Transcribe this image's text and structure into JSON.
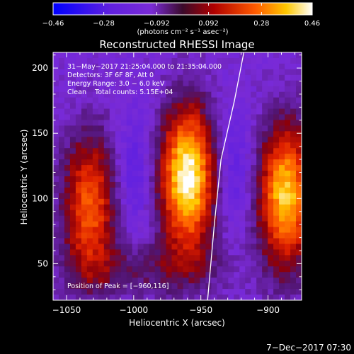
{
  "chart_data": {
    "type": "heatmap",
    "title": "Reconstructed RHESSI Image",
    "xlabel": "Heliocentric X (arcsec)",
    "ylabel": "Heliocentric Y (arcsec)",
    "xlim": [
      -1060,
      -875
    ],
    "ylim": [
      22,
      212
    ],
    "x_ticks": [
      -1050,
      -1000,
      -950,
      -900
    ],
    "x_tick_labels": [
      "−1050",
      "−1000",
      "−950",
      "−900"
    ],
    "y_ticks": [
      50,
      100,
      150,
      200
    ],
    "y_tick_labels": [
      "50",
      "100",
      "150",
      "200"
    ],
    "colorbar": {
      "min": -0.46,
      "max": 0.46,
      "ticks": [
        -0.46,
        -0.28,
        -0.092,
        0.092,
        0.28,
        0.46
      ],
      "tick_labels": [
        "−0.46",
        "−0.28",
        "−0.092",
        "0.092",
        "0.28",
        "0.46"
      ],
      "units": "(photons cm⁻² s⁻¹ asec⁻²)",
      "colors": [
        "#0000ff",
        "#7a2bd6",
        "#b00000",
        "#ff5a00",
        "#ffc800",
        "#ffffff"
      ]
    },
    "annotations": [
      "31−May−2017 21:25:04.000 to 21:35:04.000",
      "Detectors: 3F 6F 8F, Att 0",
      "Energy Range: 3.0 − 6.0 keV",
      "Clean    Total counts: 5.15E+04"
    ],
    "peak_label": "Position of Peak = [−960,116]",
    "peak": [
      -960,
      116
    ],
    "sources": [
      {
        "x": -1033,
        "y": 95,
        "peak": 0.24
      },
      {
        "x": -960,
        "y": 116,
        "peak": 0.46
      },
      {
        "x": -887,
        "y": 102,
        "peak": 0.38
      }
    ],
    "limb_curve": [
      [
        -945,
        22
      ],
      [
        -940,
        80
      ],
      [
        -935,
        130
      ],
      [
        -925,
        175
      ],
      [
        -918,
        212
      ]
    ]
  },
  "footer_date": "7−Dec−2017 07:30"
}
